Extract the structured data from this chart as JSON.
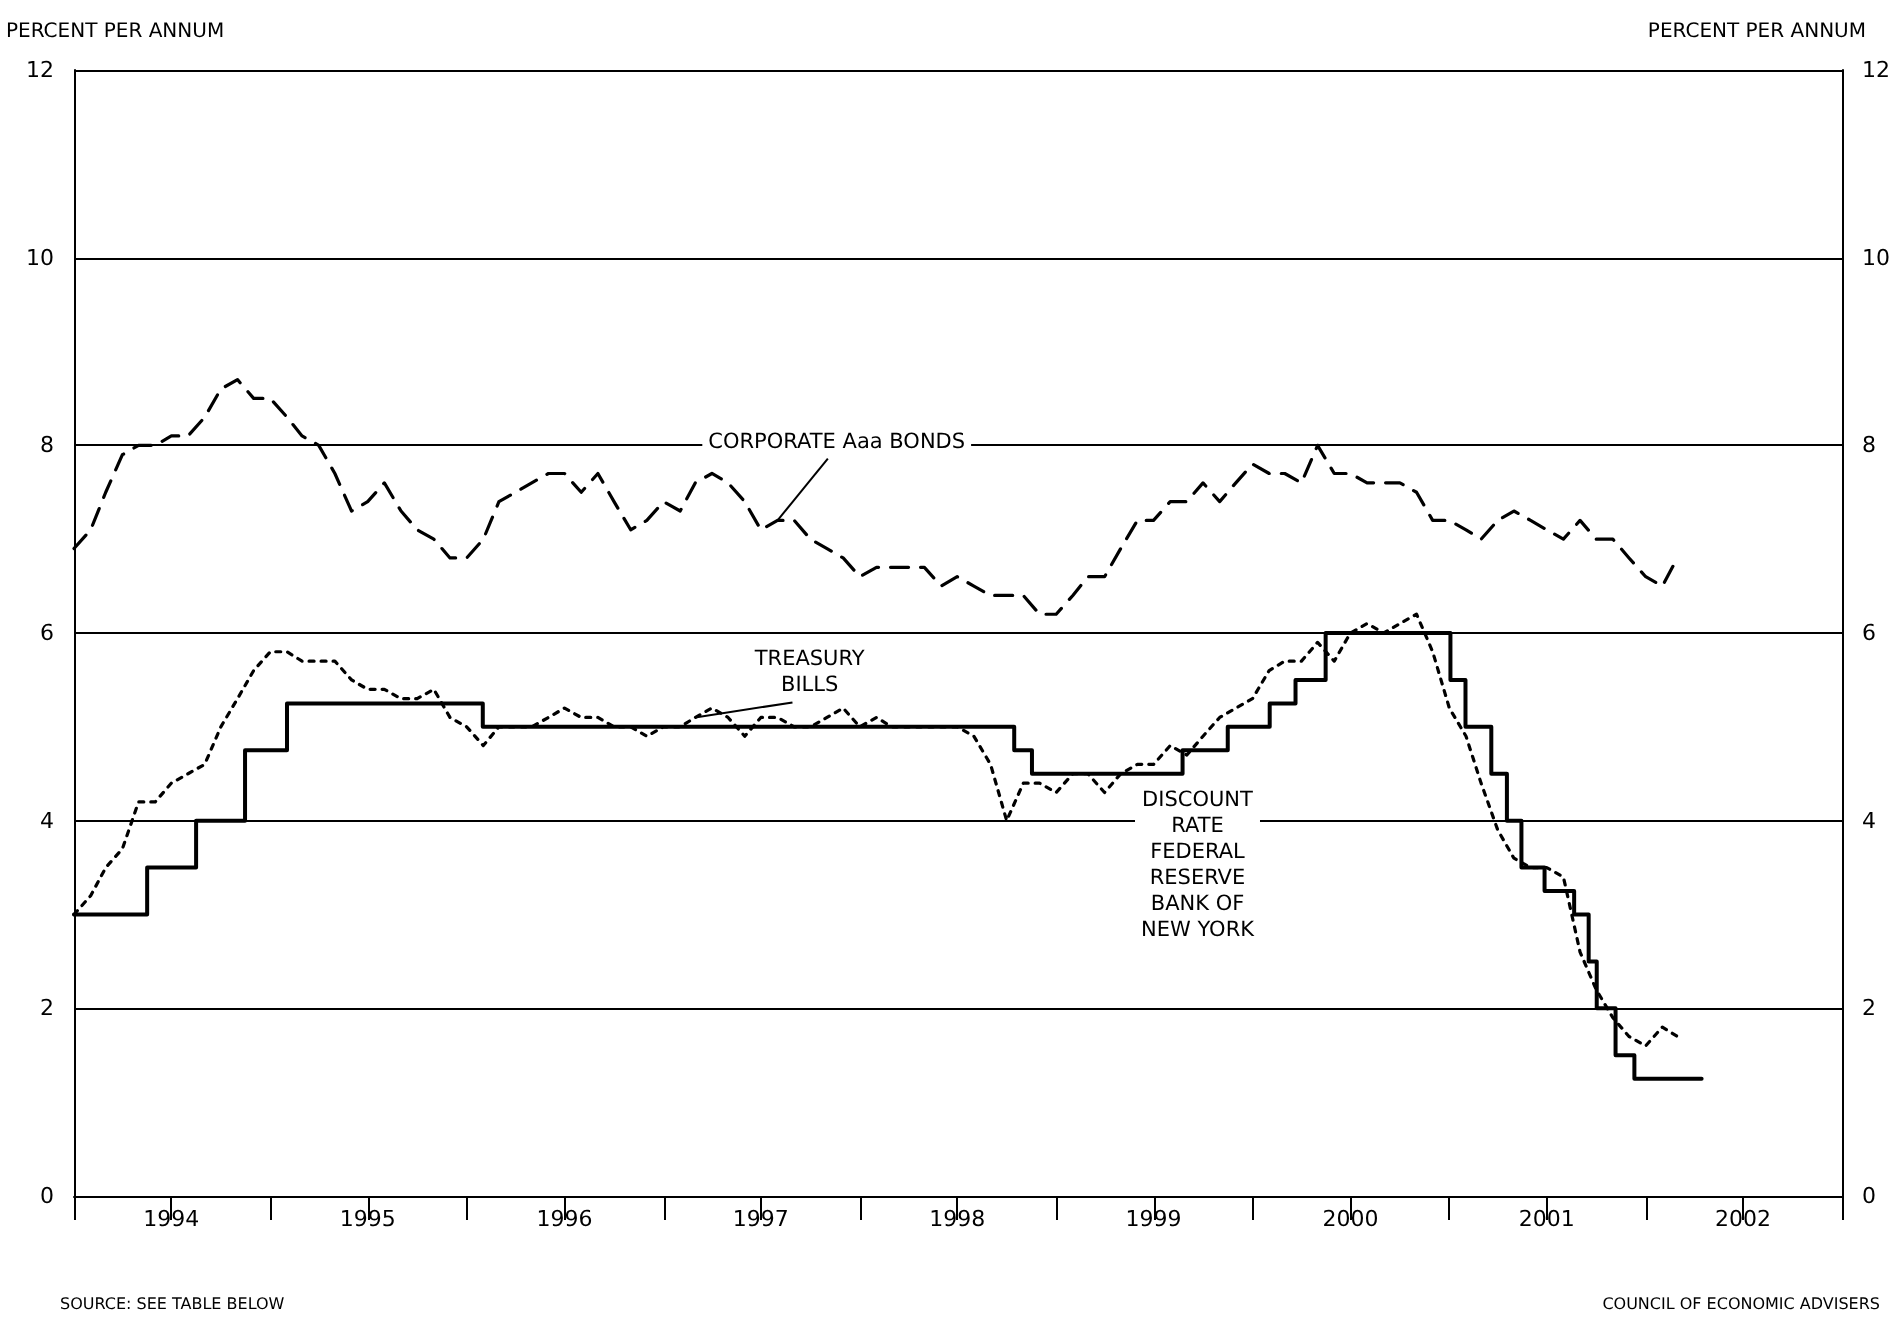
{
  "chart_data": {
    "type": "line",
    "ylabel": "PERCENT PER ANNUM",
    "y2label": "PERCENT PER ANNUM",
    "annotations": [
      "SOURCE: SEE TABLE BELOW",
      "COUNCIL OF ECONOMIC ADVISERS"
    ],
    "xlim": [
      "1994-01",
      "2003-01"
    ],
    "xticks": [
      {
        "value": "1994-01",
        "label": null
      },
      {
        "value": "1994-07",
        "label": "1994"
      },
      {
        "value": "1995-01",
        "label": null
      },
      {
        "value": "1995-07",
        "label": "1995"
      },
      {
        "value": "1996-01",
        "label": null
      },
      {
        "value": "1996-07",
        "label": "1996"
      },
      {
        "value": "1997-01",
        "label": null
      },
      {
        "value": "1997-07",
        "label": "1997"
      },
      {
        "value": "1998-01",
        "label": null
      },
      {
        "value": "1998-07",
        "label": "1998"
      },
      {
        "value": "1999-01",
        "label": null
      },
      {
        "value": "1999-07",
        "label": "1999"
      },
      {
        "value": "2000-01",
        "label": null
      },
      {
        "value": "2000-07",
        "label": "2000"
      },
      {
        "value": "2001-01",
        "label": null
      },
      {
        "value": "2001-07",
        "label": "2001"
      },
      {
        "value": "2002-01",
        "label": null
      },
      {
        "value": "2002-07",
        "label": "2002"
      },
      {
        "value": "2003-01",
        "label": null
      }
    ],
    "ylim": [
      0,
      12
    ],
    "yticks": [
      0,
      2,
      4,
      6,
      8,
      10,
      12
    ],
    "y2lim": [
      0,
      12
    ],
    "y2ticks": [
      0,
      2,
      4,
      6,
      8,
      10,
      12
    ],
    "grid": "y",
    "legend": false,
    "marker": "none",
    "series": [
      {
        "name": "CORPORATE Aaa BONDS",
        "color": "#000000",
        "line_style": "dashed",
        "x": [
          "1994-01",
          "1994-02",
          "1994-03",
          "1994-04",
          "1994-05",
          "1994-06",
          "1994-07",
          "1994-08",
          "1994-09",
          "1994-10",
          "1994-11",
          "1994-12",
          "1995-01",
          "1995-02",
          "1995-03",
          "1995-04",
          "1995-05",
          "1995-06",
          "1995-07",
          "1995-08",
          "1995-09",
          "1995-10",
          "1995-11",
          "1995-12",
          "1996-01",
          "1996-02",
          "1996-03",
          "1996-04",
          "1996-05",
          "1996-06",
          "1996-07",
          "1996-08",
          "1996-09",
          "1996-10",
          "1996-11",
          "1996-12",
          "1997-01",
          "1997-02",
          "1997-03",
          "1997-04",
          "1997-05",
          "1997-06",
          "1997-07",
          "1997-08",
          "1997-09",
          "1997-10",
          "1997-11",
          "1997-12",
          "1998-01",
          "1998-02",
          "1998-03",
          "1998-04",
          "1998-05",
          "1998-06",
          "1998-07",
          "1998-08",
          "1998-09",
          "1998-10",
          "1998-11",
          "1998-12",
          "1999-01",
          "1999-02",
          "1999-03",
          "1999-04",
          "1999-05",
          "1999-06",
          "1999-07",
          "1999-08",
          "1999-09",
          "1999-10",
          "1999-11",
          "1999-12",
          "2000-01",
          "2000-02",
          "2000-03",
          "2000-04",
          "2000-05",
          "2000-06",
          "2000-07",
          "2000-08",
          "2000-09",
          "2000-10",
          "2000-11",
          "2000-12",
          "2001-01",
          "2001-02",
          "2001-03",
          "2001-04",
          "2001-05",
          "2001-06",
          "2001-07",
          "2001-08",
          "2001-09",
          "2001-10",
          "2001-11",
          "2001-12",
          "2002-01",
          "2002-02",
          "2002-03"
        ],
        "values": [
          6.9,
          7.1,
          7.5,
          7.9,
          8.0,
          8.0,
          8.1,
          8.1,
          8.3,
          8.6,
          8.7,
          8.5,
          8.5,
          8.3,
          8.1,
          8.0,
          7.7,
          7.3,
          7.4,
          7.6,
          7.3,
          7.1,
          7.0,
          6.8,
          6.8,
          7.0,
          7.4,
          7.5,
          7.6,
          7.7,
          7.7,
          7.5,
          7.7,
          7.4,
          7.1,
          7.2,
          7.4,
          7.3,
          7.6,
          7.7,
          7.6,
          7.4,
          7.1,
          7.2,
          7.2,
          7.0,
          6.9,
          6.8,
          6.6,
          6.7,
          6.7,
          6.7,
          6.7,
          6.5,
          6.6,
          6.5,
          6.4,
          6.4,
          6.4,
          6.2,
          6.2,
          6.4,
          6.6,
          6.6,
          6.9,
          7.2,
          7.2,
          7.4,
          7.4,
          7.6,
          7.4,
          7.6,
          7.8,
          7.7,
          7.7,
          7.6,
          8.0,
          7.7,
          7.7,
          7.6,
          7.6,
          7.6,
          7.5,
          7.2,
          7.2,
          7.1,
          7.0,
          7.2,
          7.3,
          7.2,
          7.1,
          7.0,
          7.2,
          7.0,
          7.0,
          6.8,
          6.6,
          6.5,
          6.8
        ]
      },
      {
        "name": "TREASURY BILLS",
        "color": "#000000",
        "line_style": "dotted",
        "x": [
          "1994-01",
          "1994-02",
          "1994-03",
          "1994-04",
          "1994-05",
          "1994-06",
          "1994-07",
          "1994-08",
          "1994-09",
          "1994-10",
          "1994-11",
          "1994-12",
          "1995-01",
          "1995-02",
          "1995-03",
          "1995-04",
          "1995-05",
          "1995-06",
          "1995-07",
          "1995-08",
          "1995-09",
          "1995-10",
          "1995-11",
          "1995-12",
          "1996-01",
          "1996-02",
          "1996-03",
          "1996-04",
          "1996-05",
          "1996-06",
          "1996-07",
          "1996-08",
          "1996-09",
          "1996-10",
          "1996-11",
          "1996-12",
          "1997-01",
          "1997-02",
          "1997-03",
          "1997-04",
          "1997-05",
          "1997-06",
          "1997-07",
          "1997-08",
          "1997-09",
          "1997-10",
          "1997-11",
          "1997-12",
          "1998-01",
          "1998-02",
          "1998-03",
          "1998-04",
          "1998-05",
          "1998-06",
          "1998-07",
          "1998-08",
          "1998-09",
          "1998-10",
          "1998-11",
          "1998-12",
          "1999-01",
          "1999-02",
          "1999-03",
          "1999-04",
          "1999-05",
          "1999-06",
          "1999-07",
          "1999-08",
          "1999-09",
          "1999-10",
          "1999-11",
          "1999-12",
          "2000-01",
          "2000-02",
          "2000-03",
          "2000-04",
          "2000-05",
          "2000-06",
          "2000-07",
          "2000-08",
          "2000-09",
          "2000-10",
          "2000-11",
          "2000-12",
          "2001-01",
          "2001-02",
          "2001-03",
          "2001-04",
          "2001-05",
          "2001-06",
          "2001-07",
          "2001-08",
          "2001-09",
          "2001-10",
          "2001-11",
          "2001-12",
          "2002-01",
          "2002-02",
          "2002-03"
        ],
        "values": [
          3.0,
          3.2,
          3.5,
          3.7,
          4.2,
          4.2,
          4.4,
          4.5,
          4.6,
          5.0,
          5.3,
          5.6,
          5.8,
          5.8,
          5.7,
          5.7,
          5.7,
          5.5,
          5.4,
          5.4,
          5.3,
          5.3,
          5.4,
          5.1,
          5.0,
          4.8,
          5.0,
          5.0,
          5.0,
          5.1,
          5.2,
          5.1,
          5.1,
          5.0,
          5.0,
          4.9,
          5.0,
          5.0,
          5.1,
          5.2,
          5.1,
          4.9,
          5.1,
          5.1,
          5.0,
          5.0,
          5.1,
          5.2,
          5.0,
          5.1,
          5.0,
          5.0,
          5.0,
          5.0,
          5.0,
          4.9,
          4.6,
          4.0,
          4.4,
          4.4,
          4.3,
          4.5,
          4.5,
          4.3,
          4.5,
          4.6,
          4.6,
          4.8,
          4.7,
          4.9,
          5.1,
          5.2,
          5.3,
          5.6,
          5.7,
          5.7,
          5.9,
          5.7,
          6.0,
          6.1,
          6.0,
          6.1,
          6.2,
          5.8,
          5.2,
          4.9,
          4.4,
          3.9,
          3.6,
          3.5,
          3.5,
          3.4,
          2.6,
          2.2,
          1.9,
          1.7,
          1.6,
          1.8,
          1.7
        ]
      },
      {
        "name": "DISCOUNT RATE FEDERAL RESERVE BANK OF NEW YORK",
        "type": "step",
        "color": "#000000",
        "line_style": "solid",
        "x": [
          "1994-01-01",
          "1994-05-17",
          "1994-08-16",
          "1994-11-15",
          "1995-02-01",
          "1996-01-31",
          "1998-10-15",
          "1998-11-17",
          "1999-08-24",
          "1999-11-16",
          "2000-02-02",
          "2000-03-21",
          "2000-05-16",
          "2001-01-03",
          "2001-01-31",
          "2001-03-20",
          "2001-04-18",
          "2001-05-15",
          "2001-06-27",
          "2001-08-21",
          "2001-09-17",
          "2001-10-02",
          "2001-11-06",
          "2001-12-11",
          "2002-04-15"
        ],
        "values": [
          3.0,
          3.5,
          4.0,
          4.75,
          5.25,
          5.0,
          4.75,
          4.5,
          4.75,
          5.0,
          5.25,
          5.5,
          6.0,
          5.5,
          5.0,
          4.5,
          4.0,
          3.5,
          3.25,
          3.0,
          2.5,
          2.0,
          1.5,
          1.25,
          1.25
        ]
      }
    ]
  }
}
